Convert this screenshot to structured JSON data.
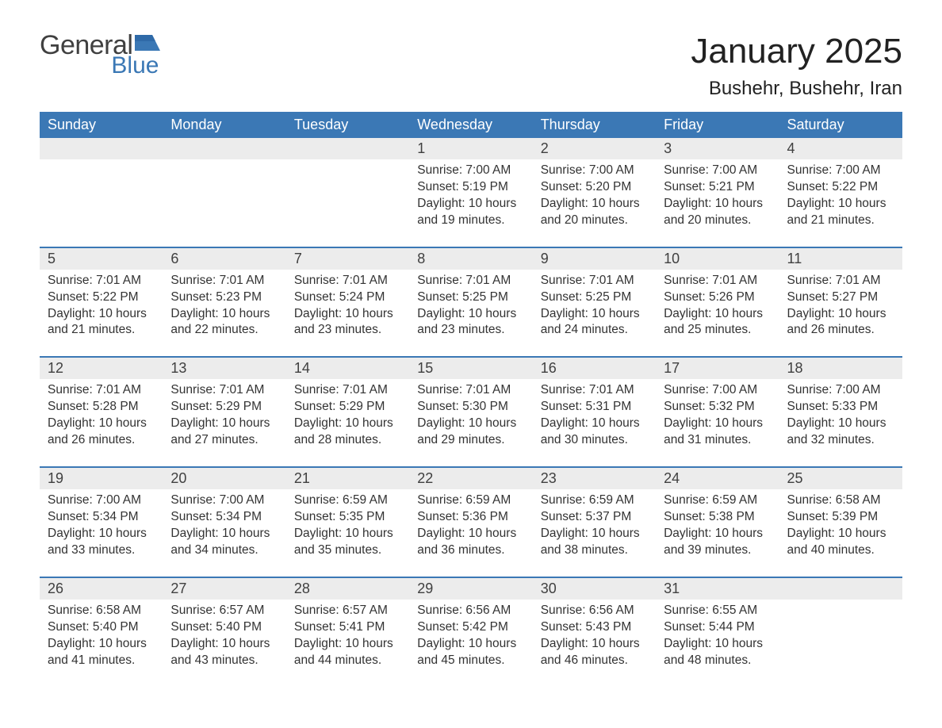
{
  "brand": {
    "general": "General",
    "blue": "Blue",
    "accent_color": "#3b78b5",
    "text_color": "#404040"
  },
  "title": "January 2025",
  "location": "Bushehr, Bushehr, Iran",
  "colors": {
    "header_bg": "#3b78b5",
    "header_text": "#ffffff",
    "daynum_bg": "#ececec",
    "row_divider": "#3b78b5",
    "body_bg": "#ffffff",
    "text": "#333333"
  },
  "fonts": {
    "title_size": 44,
    "location_size": 24,
    "header_size": 18,
    "daynum_size": 18,
    "body_size": 15.5
  },
  "weekdays": [
    "Sunday",
    "Monday",
    "Tuesday",
    "Wednesday",
    "Thursday",
    "Friday",
    "Saturday"
  ],
  "weeks": [
    {
      "nums": [
        "",
        "",
        "",
        "1",
        "2",
        "3",
        "4"
      ],
      "cells": [
        null,
        null,
        null,
        {
          "sunrise": "Sunrise: 7:00 AM",
          "sunset": "Sunset: 5:19 PM",
          "d1": "Daylight: 10 hours",
          "d2": "and 19 minutes."
        },
        {
          "sunrise": "Sunrise: 7:00 AM",
          "sunset": "Sunset: 5:20 PM",
          "d1": "Daylight: 10 hours",
          "d2": "and 20 minutes."
        },
        {
          "sunrise": "Sunrise: 7:00 AM",
          "sunset": "Sunset: 5:21 PM",
          "d1": "Daylight: 10 hours",
          "d2": "and 20 minutes."
        },
        {
          "sunrise": "Sunrise: 7:00 AM",
          "sunset": "Sunset: 5:22 PM",
          "d1": "Daylight: 10 hours",
          "d2": "and 21 minutes."
        }
      ]
    },
    {
      "nums": [
        "5",
        "6",
        "7",
        "8",
        "9",
        "10",
        "11"
      ],
      "cells": [
        {
          "sunrise": "Sunrise: 7:01 AM",
          "sunset": "Sunset: 5:22 PM",
          "d1": "Daylight: 10 hours",
          "d2": "and 21 minutes."
        },
        {
          "sunrise": "Sunrise: 7:01 AM",
          "sunset": "Sunset: 5:23 PM",
          "d1": "Daylight: 10 hours",
          "d2": "and 22 minutes."
        },
        {
          "sunrise": "Sunrise: 7:01 AM",
          "sunset": "Sunset: 5:24 PM",
          "d1": "Daylight: 10 hours",
          "d2": "and 23 minutes."
        },
        {
          "sunrise": "Sunrise: 7:01 AM",
          "sunset": "Sunset: 5:25 PM",
          "d1": "Daylight: 10 hours",
          "d2": "and 23 minutes."
        },
        {
          "sunrise": "Sunrise: 7:01 AM",
          "sunset": "Sunset: 5:25 PM",
          "d1": "Daylight: 10 hours",
          "d2": "and 24 minutes."
        },
        {
          "sunrise": "Sunrise: 7:01 AM",
          "sunset": "Sunset: 5:26 PM",
          "d1": "Daylight: 10 hours",
          "d2": "and 25 minutes."
        },
        {
          "sunrise": "Sunrise: 7:01 AM",
          "sunset": "Sunset: 5:27 PM",
          "d1": "Daylight: 10 hours",
          "d2": "and 26 minutes."
        }
      ]
    },
    {
      "nums": [
        "12",
        "13",
        "14",
        "15",
        "16",
        "17",
        "18"
      ],
      "cells": [
        {
          "sunrise": "Sunrise: 7:01 AM",
          "sunset": "Sunset: 5:28 PM",
          "d1": "Daylight: 10 hours",
          "d2": "and 26 minutes."
        },
        {
          "sunrise": "Sunrise: 7:01 AM",
          "sunset": "Sunset: 5:29 PM",
          "d1": "Daylight: 10 hours",
          "d2": "and 27 minutes."
        },
        {
          "sunrise": "Sunrise: 7:01 AM",
          "sunset": "Sunset: 5:29 PM",
          "d1": "Daylight: 10 hours",
          "d2": "and 28 minutes."
        },
        {
          "sunrise": "Sunrise: 7:01 AM",
          "sunset": "Sunset: 5:30 PM",
          "d1": "Daylight: 10 hours",
          "d2": "and 29 minutes."
        },
        {
          "sunrise": "Sunrise: 7:01 AM",
          "sunset": "Sunset: 5:31 PM",
          "d1": "Daylight: 10 hours",
          "d2": "and 30 minutes."
        },
        {
          "sunrise": "Sunrise: 7:00 AM",
          "sunset": "Sunset: 5:32 PM",
          "d1": "Daylight: 10 hours",
          "d2": "and 31 minutes."
        },
        {
          "sunrise": "Sunrise: 7:00 AM",
          "sunset": "Sunset: 5:33 PM",
          "d1": "Daylight: 10 hours",
          "d2": "and 32 minutes."
        }
      ]
    },
    {
      "nums": [
        "19",
        "20",
        "21",
        "22",
        "23",
        "24",
        "25"
      ],
      "cells": [
        {
          "sunrise": "Sunrise: 7:00 AM",
          "sunset": "Sunset: 5:34 PM",
          "d1": "Daylight: 10 hours",
          "d2": "and 33 minutes."
        },
        {
          "sunrise": "Sunrise: 7:00 AM",
          "sunset": "Sunset: 5:34 PM",
          "d1": "Daylight: 10 hours",
          "d2": "and 34 minutes."
        },
        {
          "sunrise": "Sunrise: 6:59 AM",
          "sunset": "Sunset: 5:35 PM",
          "d1": "Daylight: 10 hours",
          "d2": "and 35 minutes."
        },
        {
          "sunrise": "Sunrise: 6:59 AM",
          "sunset": "Sunset: 5:36 PM",
          "d1": "Daylight: 10 hours",
          "d2": "and 36 minutes."
        },
        {
          "sunrise": "Sunrise: 6:59 AM",
          "sunset": "Sunset: 5:37 PM",
          "d1": "Daylight: 10 hours",
          "d2": "and 38 minutes."
        },
        {
          "sunrise": "Sunrise: 6:59 AM",
          "sunset": "Sunset: 5:38 PM",
          "d1": "Daylight: 10 hours",
          "d2": "and 39 minutes."
        },
        {
          "sunrise": "Sunrise: 6:58 AM",
          "sunset": "Sunset: 5:39 PM",
          "d1": "Daylight: 10 hours",
          "d2": "and 40 minutes."
        }
      ]
    },
    {
      "nums": [
        "26",
        "27",
        "28",
        "29",
        "30",
        "31",
        ""
      ],
      "cells": [
        {
          "sunrise": "Sunrise: 6:58 AM",
          "sunset": "Sunset: 5:40 PM",
          "d1": "Daylight: 10 hours",
          "d2": "and 41 minutes."
        },
        {
          "sunrise": "Sunrise: 6:57 AM",
          "sunset": "Sunset: 5:40 PM",
          "d1": "Daylight: 10 hours",
          "d2": "and 43 minutes."
        },
        {
          "sunrise": "Sunrise: 6:57 AM",
          "sunset": "Sunset: 5:41 PM",
          "d1": "Daylight: 10 hours",
          "d2": "and 44 minutes."
        },
        {
          "sunrise": "Sunrise: 6:56 AM",
          "sunset": "Sunset: 5:42 PM",
          "d1": "Daylight: 10 hours",
          "d2": "and 45 minutes."
        },
        {
          "sunrise": "Sunrise: 6:56 AM",
          "sunset": "Sunset: 5:43 PM",
          "d1": "Daylight: 10 hours",
          "d2": "and 46 minutes."
        },
        {
          "sunrise": "Sunrise: 6:55 AM",
          "sunset": "Sunset: 5:44 PM",
          "d1": "Daylight: 10 hours",
          "d2": "and 48 minutes."
        },
        null
      ]
    }
  ]
}
